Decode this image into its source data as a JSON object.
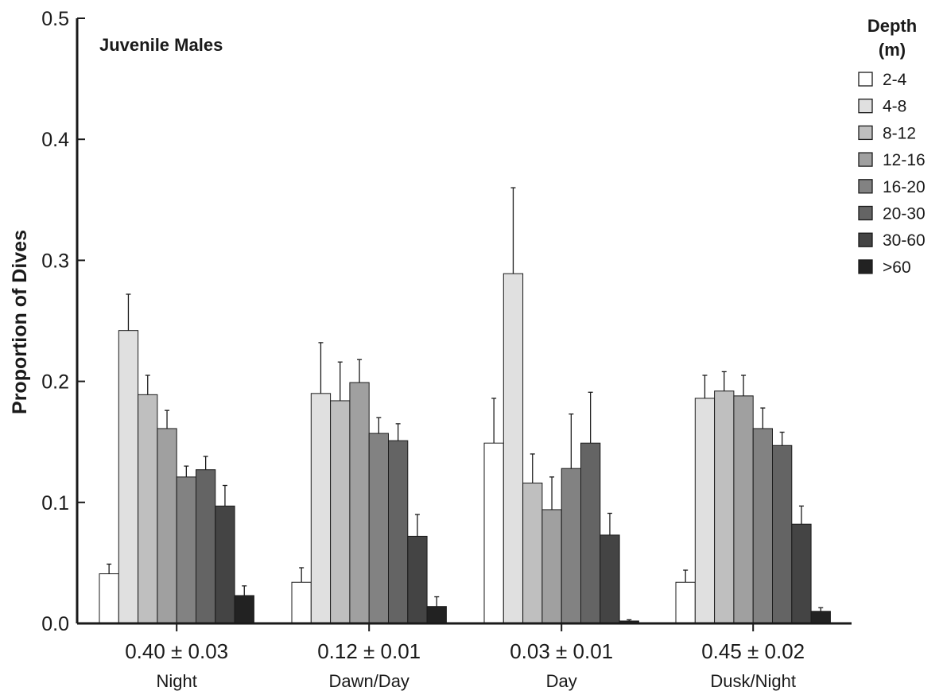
{
  "chart_data": {
    "type": "bar",
    "title": "Juvenile Males",
    "ylabel": "Proportion of Dives",
    "xlabel": "",
    "ylim": [
      0,
      0.5
    ],
    "yticks": [
      "0.0",
      "0.1",
      "0.2",
      "0.3",
      "0.4",
      "0.5"
    ],
    "legend_title": "Depth (m)",
    "legend_title_lines": [
      "Depth",
      "(m)"
    ],
    "legend_position": "top-right",
    "categories": [
      "Night",
      "Dawn/Day",
      "Day",
      "Dusk/Night"
    ],
    "category_values": [
      "0.40 ± 0.03",
      "0.12 ± 0.01",
      "0.03 ± 0.01",
      "0.45 ± 0.02"
    ],
    "series": [
      {
        "name": "2-4",
        "color": "#ffffff",
        "values": [
          0.041,
          0.034,
          0.149,
          0.034
        ],
        "errors": [
          0.008,
          0.012,
          0.037,
          0.01
        ]
      },
      {
        "name": "4-8",
        "color": "#e0e0e0",
        "values": [
          0.242,
          0.19,
          0.289,
          0.186
        ],
        "errors": [
          0.03,
          0.042,
          0.071,
          0.019
        ]
      },
      {
        "name": "8-12",
        "color": "#bfbfbf",
        "values": [
          0.189,
          0.184,
          0.116,
          0.192
        ],
        "errors": [
          0.016,
          0.032,
          0.024,
          0.016
        ]
      },
      {
        "name": "12-16",
        "color": "#a0a0a0",
        "values": [
          0.161,
          0.199,
          0.094,
          0.188
        ],
        "errors": [
          0.015,
          0.019,
          0.027,
          0.017
        ]
      },
      {
        "name": "16-20",
        "color": "#828282",
        "values": [
          0.121,
          0.157,
          0.128,
          0.161
        ],
        "errors": [
          0.009,
          0.013,
          0.045,
          0.017
        ]
      },
      {
        "name": "20-30",
        "color": "#646464",
        "values": [
          0.127,
          0.151,
          0.149,
          0.147
        ],
        "errors": [
          0.011,
          0.014,
          0.042,
          0.011
        ]
      },
      {
        "name": "30-60",
        "color": "#444444",
        "values": [
          0.097,
          0.072,
          0.073,
          0.082
        ],
        "errors": [
          0.017,
          0.018,
          0.018,
          0.015
        ]
      },
      {
        "name": ">60",
        "color": "#222222",
        "values": [
          0.023,
          0.014,
          0.002,
          0.01
        ],
        "errors": [
          0.008,
          0.008,
          0.001,
          0.003
        ]
      }
    ]
  }
}
